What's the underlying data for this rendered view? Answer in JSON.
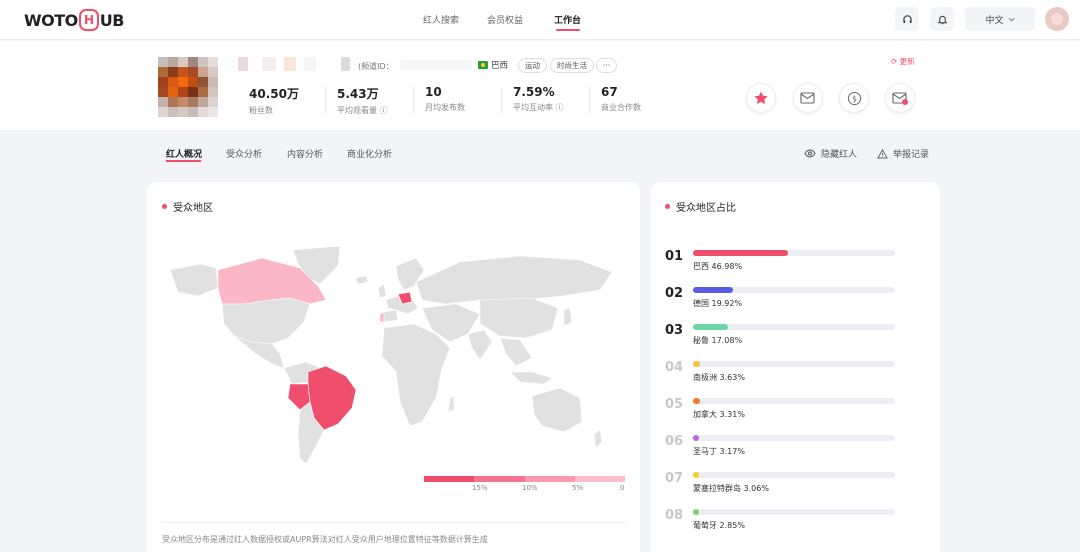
{
  "brand": {
    "logo_left": "WOTO",
    "logo_mark": "H",
    "logo_right": "UB",
    "accent": "#f04e6d"
  },
  "nav": {
    "links": [
      "红人搜索",
      "会员权益",
      "工作台"
    ],
    "active": "工作台"
  },
  "header_actions": {
    "lang": "中文",
    "headset": "headset-icon",
    "bell": "bell-icon"
  },
  "profile": {
    "channel_label": "(频道ID：",
    "country": "巴西",
    "tags": [
      "运动",
      "时尚生活",
      "···"
    ],
    "refresh": "更新",
    "stats": [
      {
        "value": "40.50万",
        "label": "粉丝数"
      },
      {
        "value": "5.43万",
        "label": "平均观看量"
      },
      {
        "value": "10",
        "label": "月均发布数"
      },
      {
        "value": "7.59%",
        "label": "平均互动率"
      },
      {
        "value": "67",
        "label": "商业合作数"
      }
    ]
  },
  "subtabs": [
    "红人概况",
    "受众分析",
    "内容分析",
    "商业化分析"
  ],
  "right_links": {
    "hide": "隐藏红人",
    "report": "举报记录"
  },
  "map_card": {
    "title": "受众地区",
    "legend_ticks": [
      "15%",
      "10%",
      "5%",
      "0"
    ],
    "footnote": "受众地区分布是通过红人数据授权或AUPR算法对红人受众用户地理位置特征等数据计算生成"
  },
  "ranking_card": {
    "title": "受众地区占比",
    "items": [
      {
        "rank": "01",
        "label": "巴西 46.98%",
        "value": 46.98,
        "color": "#f04e6d"
      },
      {
        "rank": "02",
        "label": "德国 19.92%",
        "value": 19.92,
        "color": "#5a5ce6"
      },
      {
        "rank": "03",
        "label": "秘鲁 17.08%",
        "value": 17.08,
        "color": "#6ed6a6"
      },
      {
        "rank": "04",
        "label": "南极洲 3.63%",
        "value": 3.63,
        "color": "#f5c242"
      },
      {
        "rank": "05",
        "label": "加拿大 3.31%",
        "value": 3.31,
        "color": "#ee7a2f"
      },
      {
        "rank": "06",
        "label": "圣马丁 3.17%",
        "value": 3.17,
        "color": "#b86ae6"
      },
      {
        "rank": "07",
        "label": "蒙塞拉特群岛 3.06%",
        "value": 3.06,
        "color": "#f2d233"
      },
      {
        "rank": "08",
        "label": "葡萄牙 2.85%",
        "value": 2.85,
        "color": "#7cd36a"
      }
    ]
  }
}
